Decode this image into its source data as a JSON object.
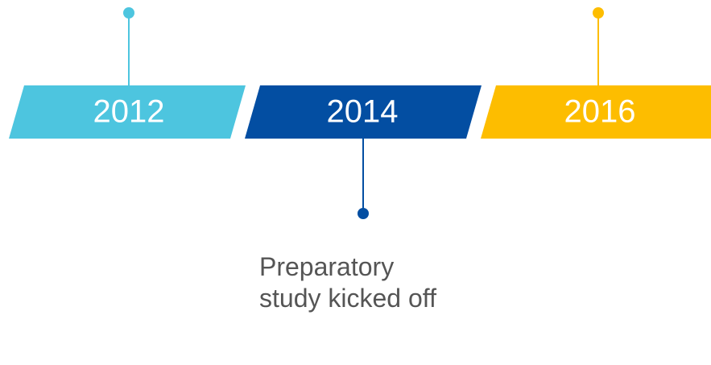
{
  "milestones": [
    {
      "year": "2012",
      "color": "#4dc5df"
    },
    {
      "year": "2014",
      "color": "#034ea2",
      "label": "Preparatory study kicked off"
    },
    {
      "year": "2016",
      "color": "#fdbd00"
    }
  ]
}
